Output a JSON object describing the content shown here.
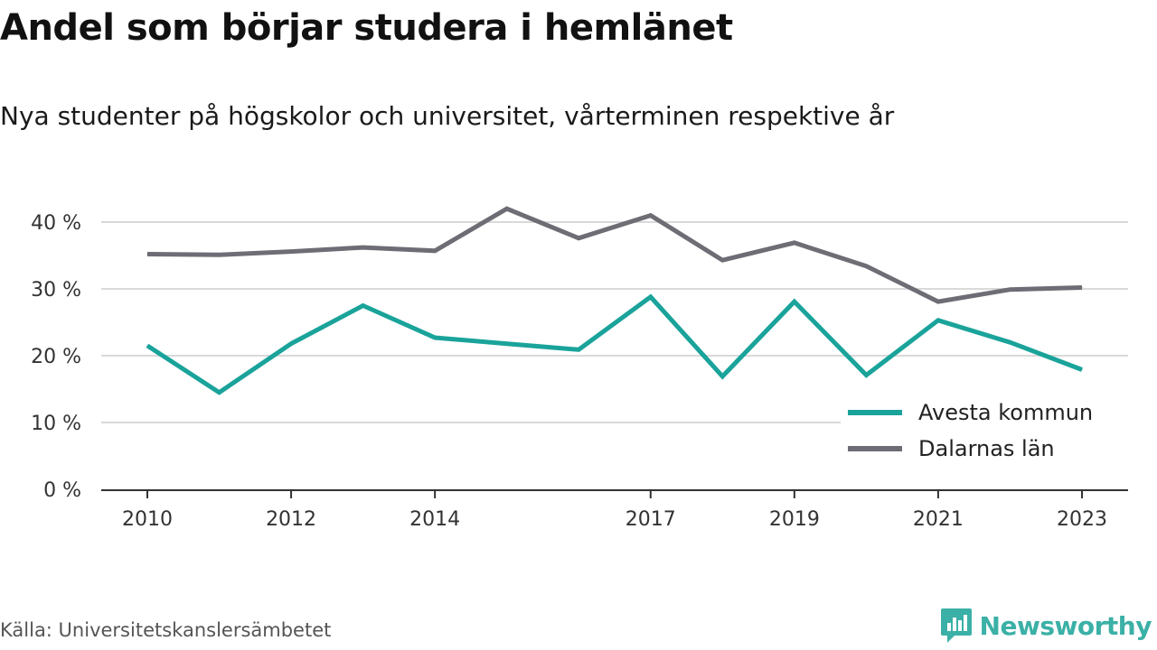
{
  "header": {
    "title": "Andel som börjar studera i hemlänet",
    "subtitle": "Nya studenter på högskolor och universitet, vårterminen respektive år"
  },
  "footer": {
    "source": "Källa: Universitetskanslersämbetet",
    "brand": "Newsworthy"
  },
  "colors": {
    "avesta": "#1aa39a",
    "dalarna": "#6e6c74",
    "grid": "#d9d9d9",
    "axis": "#333333",
    "brand": "#3bb0a6"
  },
  "chart_data": {
    "type": "line",
    "title": "Andel som börjar studera i hemlänet",
    "subtitle": "Nya studenter på högskolor och universitet, vårterminen respektive år",
    "x": [
      2010,
      2011,
      2012,
      2013,
      2014,
      2015,
      2016,
      2017,
      2018,
      2019,
      2020,
      2021,
      2022,
      2023
    ],
    "x_tick_labels": [
      "2010",
      "2012",
      "2014",
      "2017",
      "2019",
      "2021",
      "2023"
    ],
    "y_tick_labels": [
      "0 %",
      "10 %",
      "20 %",
      "30 %",
      "40 %"
    ],
    "y_ticks": [
      0,
      10,
      20,
      30,
      40
    ],
    "ylim": [
      0,
      40
    ],
    "xlim": [
      2010,
      2023
    ],
    "grid": true,
    "legend_position": "bottom-right",
    "series": [
      {
        "name": "Avesta kommun",
        "color": "#1aa39a",
        "values": [
          21.5,
          14.5,
          21.8,
          27.5,
          22.7,
          21.8,
          20.9,
          28.8,
          16.9,
          28.1,
          17.1,
          25.3,
          22.0,
          17.9
        ]
      },
      {
        "name": "Dalarnas län",
        "color": "#6e6c74",
        "values": [
          35.2,
          35.1,
          35.6,
          36.2,
          35.7,
          42.0,
          37.6,
          41.0,
          34.3,
          36.9,
          33.4,
          28.1,
          29.9,
          30.2
        ]
      }
    ]
  }
}
